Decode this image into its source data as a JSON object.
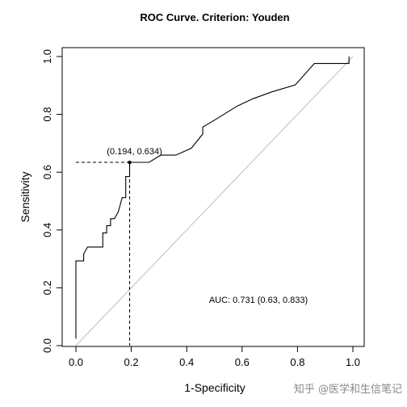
{
  "chart_data": {
    "type": "line",
    "title": "ROC Curve. Criterion: Youden",
    "xlabel": "1-Specificity",
    "ylabel": "Sensitivity",
    "xlim": [
      0,
      1
    ],
    "ylim": [
      0,
      1
    ],
    "xticks": [
      "0.0",
      "0.2",
      "0.4",
      "0.6",
      "0.8",
      "1.0"
    ],
    "yticks": [
      "0.0",
      "0.2",
      "0.4",
      "0.6",
      "0.8",
      "1.0"
    ],
    "grid": false,
    "series": [
      {
        "points": [
          [
            0.0,
            0.024
          ],
          [
            0.0,
            0.293
          ],
          [
            0.028,
            0.293
          ],
          [
            0.028,
            0.317
          ],
          [
            0.042,
            0.341
          ],
          [
            0.097,
            0.341
          ],
          [
            0.097,
            0.39
          ],
          [
            0.111,
            0.39
          ],
          [
            0.111,
            0.415
          ],
          [
            0.125,
            0.415
          ],
          [
            0.125,
            0.439
          ],
          [
            0.139,
            0.439
          ],
          [
            0.153,
            0.463
          ],
          [
            0.167,
            0.512
          ],
          [
            0.18,
            0.512
          ],
          [
            0.18,
            0.585
          ],
          [
            0.194,
            0.585
          ],
          [
            0.194,
            0.634
          ],
          [
            0.264,
            0.634
          ],
          [
            0.306,
            0.659
          ],
          [
            0.361,
            0.659
          ],
          [
            0.417,
            0.683
          ],
          [
            0.458,
            0.732
          ],
          [
            0.458,
            0.756
          ],
          [
            0.5,
            0.78
          ],
          [
            0.583,
            0.829
          ],
          [
            0.639,
            0.854
          ],
          [
            0.708,
            0.878
          ],
          [
            0.792,
            0.902
          ],
          [
            0.861,
            0.976
          ],
          [
            0.986,
            0.976
          ],
          [
            0.986,
            1.0
          ]
        ]
      }
    ],
    "diagonal": [
      [
        0,
        0
      ],
      [
        1,
        1
      ]
    ],
    "cutoff": {
      "x": 0.194,
      "y": 0.634,
      "label": "(0.194, 0.634)"
    },
    "auc_text": "AUC: 0.731 (0.63, 0.833)",
    "colors": {
      "curve": "#000000",
      "diagonal": "#bdbdbd",
      "axis": "#000000"
    }
  },
  "watermark": "知乎 @医学和生信笔记"
}
